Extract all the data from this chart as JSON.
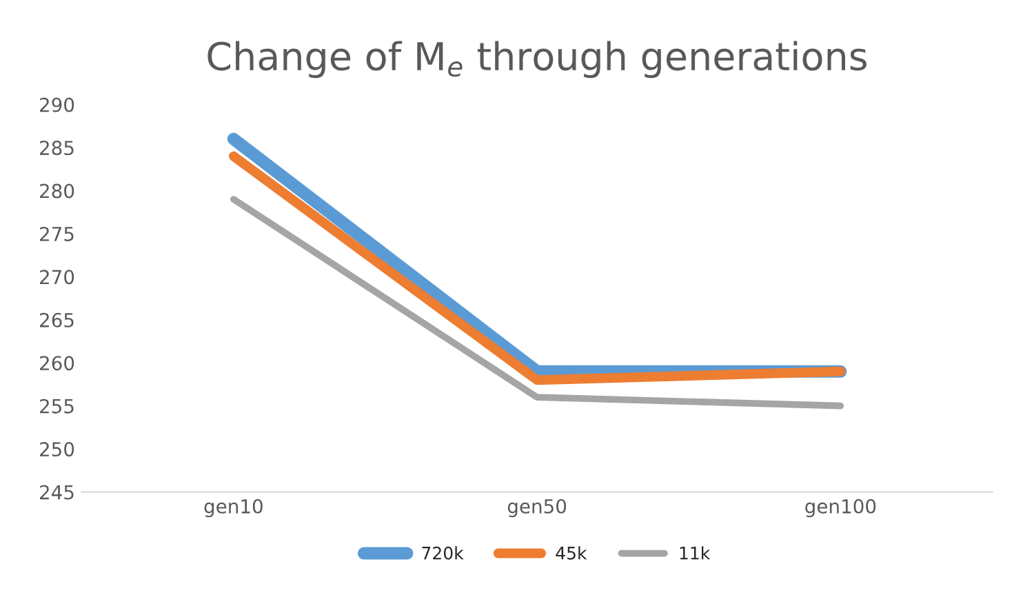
{
  "chart_data": {
    "type": "line",
    "title": "Change of M$_{e}$ through generations",
    "categories": [
      "gen10",
      "gen50",
      "gen100"
    ],
    "series": [
      {
        "name": "720k",
        "color": "#5b9bd5",
        "values": [
          286,
          259,
          259
        ]
      },
      {
        "name": "45k",
        "color": "#ed7d31",
        "values": [
          284,
          258,
          259
        ]
      },
      {
        "name": "11k",
        "color": "#a5a5a5",
        "values": [
          279,
          256,
          255
        ]
      }
    ],
    "ylim": [
      245,
      290
    ],
    "yticks": [
      245,
      250,
      255,
      260,
      265,
      270,
      275,
      280,
      285,
      290
    ],
    "grid": false,
    "legend": "bottom",
    "marker": "none",
    "line_style": "solid"
  }
}
